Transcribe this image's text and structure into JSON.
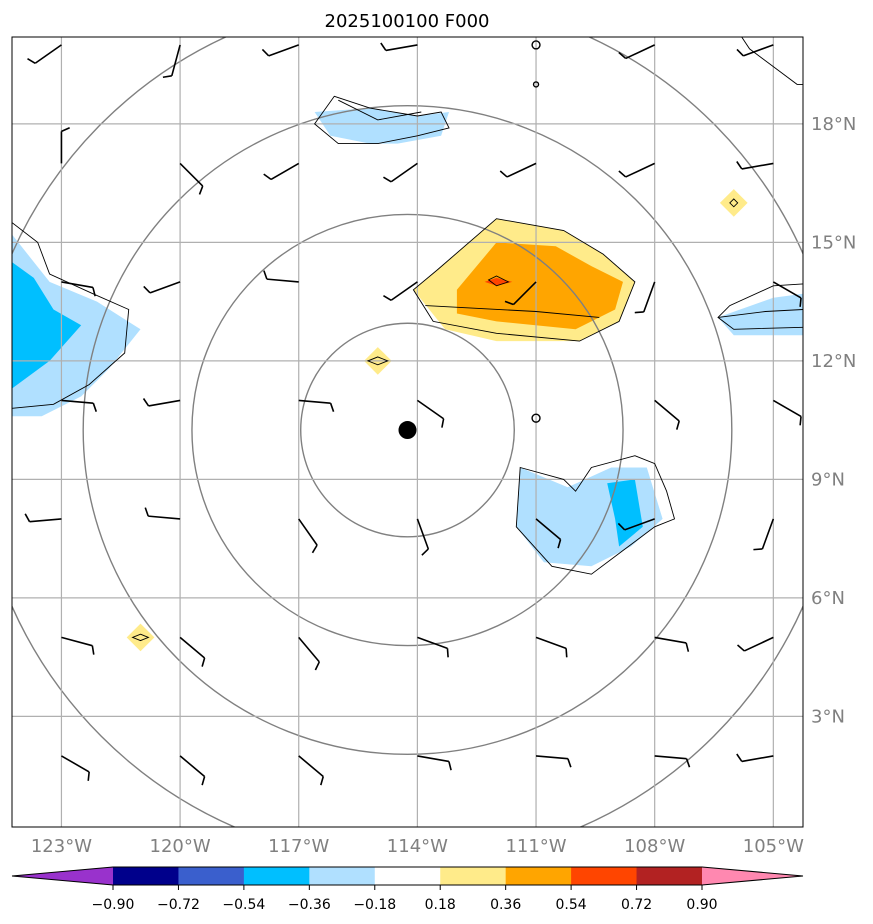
{
  "chart_data": {
    "type": "map",
    "title": "2025100100 F000",
    "projection": "lat-lon",
    "xlim": [
      -124.25,
      -104.25
    ],
    "ylim": [
      0.2,
      20.2
    ],
    "x_ticks": [
      {
        "value": -123,
        "label": "123°W"
      },
      {
        "value": -120,
        "label": "120°W"
      },
      {
        "value": -117,
        "label": "117°W"
      },
      {
        "value": -114,
        "label": "114°W"
      },
      {
        "value": -111,
        "label": "111°W"
      },
      {
        "value": -108,
        "label": "108°W"
      },
      {
        "value": -105,
        "label": "105°W"
      }
    ],
    "y_ticks": [
      {
        "value": 3,
        "label": "3°N"
      },
      {
        "value": 6,
        "label": "6°N"
      },
      {
        "value": 9,
        "label": "9°N"
      },
      {
        "value": 12,
        "label": "12°N"
      },
      {
        "value": 15,
        "label": "15°N"
      },
      {
        "value": 18,
        "label": "18°N"
      }
    ],
    "grid": true,
    "storm_center": {
      "lon": -114.25,
      "lat": 10.25
    },
    "range_rings_deg": [
      2.7,
      5.45,
      8.2,
      10.95
    ],
    "colorbar": {
      "orientation": "horizontal",
      "extend": "both",
      "boundaries": [
        -0.9,
        -0.72,
        -0.54,
        -0.36,
        -0.18,
        0.18,
        0.36,
        0.54,
        0.72,
        0.9
      ],
      "tick_labels": [
        "−0.90",
        "−0.72",
        "−0.54",
        "−0.36",
        "−0.18",
        "0.18",
        "0.36",
        "0.54",
        "0.72",
        "0.90"
      ],
      "colors": [
        "#9932cc",
        "#00008b",
        "#3a5fcd",
        "#00bfff",
        "#b0e0ff",
        "#ffffff",
        "#ffeb8a",
        "#ffa500",
        "#ff4500",
        "#b22222",
        "#ff88b0"
      ]
    },
    "filled_regions": [
      {
        "level": "0.18-0.36",
        "color": "#ffeb8a",
        "lonlat": [
          [
            -113.5,
            14.3
          ],
          [
            -112.0,
            15.6
          ],
          [
            -110.3,
            15.3
          ],
          [
            -109.3,
            14.7
          ],
          [
            -108.5,
            14.0
          ],
          [
            -108.9,
            13.0
          ],
          [
            -109.9,
            12.5
          ],
          [
            -112.0,
            12.5
          ],
          [
            -113.3,
            12.8
          ],
          [
            -114.1,
            13.8
          ]
        ]
      },
      {
        "level": "0.36-0.54",
        "color": "#ffa500",
        "lonlat": [
          [
            -113.0,
            13.8
          ],
          [
            -112.0,
            15.0
          ],
          [
            -110.5,
            14.9
          ],
          [
            -109.6,
            14.4
          ],
          [
            -108.8,
            14.0
          ],
          [
            -109.0,
            13.3
          ],
          [
            -110.0,
            12.8
          ],
          [
            -112.0,
            13.0
          ],
          [
            -113.0,
            13.2
          ]
        ]
      },
      {
        "level": "0.54-0.72",
        "color": "#ff4500",
        "lonlat": [
          [
            -112.3,
            14.0
          ],
          [
            -112.0,
            14.1
          ],
          [
            -111.6,
            14.0
          ],
          [
            -112.0,
            13.9
          ]
        ]
      },
      {
        "level": "0.18-0.36",
        "color": "#ffeb8a",
        "lonlat": [
          [
            -115.0,
            12.35
          ],
          [
            -114.65,
            12.0
          ],
          [
            -115.0,
            11.65
          ],
          [
            -115.35,
            12.0
          ]
        ]
      },
      {
        "level": "0.18-0.36",
        "color": "#ffeb8a",
        "lonlat": [
          [
            -121.0,
            5.35
          ],
          [
            -120.65,
            5.0
          ],
          [
            -121.0,
            4.65
          ],
          [
            -121.35,
            5.0
          ]
        ]
      },
      {
        "level": "0.18-0.36",
        "color": "#ffeb8a",
        "lonlat": [
          [
            -106.0,
            16.35
          ],
          [
            -105.65,
            16.0
          ],
          [
            -106.0,
            15.65
          ],
          [
            -106.35,
            16.0
          ]
        ]
      },
      {
        "level": "-0.36--0.18",
        "color": "#b0e0ff",
        "lonlat": [
          [
            -124.25,
            15.2
          ],
          [
            -123.3,
            14.0
          ],
          [
            -122.1,
            13.5
          ],
          [
            -121.0,
            12.8
          ],
          [
            -121.8,
            11.8
          ],
          [
            -122.5,
            11.1
          ],
          [
            -123.5,
            10.6
          ],
          [
            -124.25,
            10.6
          ]
        ]
      },
      {
        "level": "-0.54--0.36",
        "color": "#00bfff",
        "lonlat": [
          [
            -124.25,
            14.5
          ],
          [
            -123.7,
            14.1
          ],
          [
            -123.2,
            13.3
          ],
          [
            -122.5,
            12.9
          ],
          [
            -123.3,
            12.0
          ],
          [
            -124.25,
            11.3
          ]
        ]
      },
      {
        "level": "-0.36--0.18",
        "color": "#b0e0ff",
        "lonlat": [
          [
            -116.6,
            18.3
          ],
          [
            -115.2,
            18.4
          ],
          [
            -114.0,
            18.2
          ],
          [
            -113.2,
            18.3
          ],
          [
            -113.4,
            17.7
          ],
          [
            -114.5,
            17.5
          ],
          [
            -115.2,
            17.5
          ],
          [
            -116.2,
            17.7
          ]
        ]
      },
      {
        "level": "-0.36--0.18",
        "color": "#b0e0ff",
        "lonlat": [
          [
            -111.4,
            9.3
          ],
          [
            -110.2,
            8.8
          ],
          [
            -109.1,
            9.3
          ],
          [
            -108.2,
            9.3
          ],
          [
            -107.8,
            8.0
          ],
          [
            -108.6,
            7.3
          ],
          [
            -109.6,
            6.8
          ],
          [
            -110.8,
            6.9
          ],
          [
            -111.5,
            7.8
          ]
        ]
      },
      {
        "level": "-0.54--0.36",
        "color": "#00bfff",
        "lonlat": [
          [
            -108.5,
            9.0
          ],
          [
            -108.3,
            7.8
          ],
          [
            -108.9,
            7.3
          ],
          [
            -109.0,
            8.0
          ],
          [
            -109.2,
            8.9
          ]
        ]
      },
      {
        "level": "-0.36--0.18",
        "color": "#b0e0ff",
        "lonlat": [
          [
            -104.25,
            13.7
          ],
          [
            -105.0,
            13.6
          ],
          [
            -106.4,
            13.1
          ],
          [
            -106.0,
            12.65
          ],
          [
            -104.25,
            12.65
          ]
        ]
      }
    ],
    "contour_lines": [
      {
        "closed": true,
        "lonlat": [
          [
            -113.5,
            14.3
          ],
          [
            -112.0,
            15.6
          ],
          [
            -110.3,
            15.3
          ],
          [
            -109.3,
            14.7
          ],
          [
            -108.5,
            14.0
          ],
          [
            -108.9,
            13.0
          ],
          [
            -109.9,
            12.5
          ],
          [
            -112.0,
            12.7
          ],
          [
            -113.6,
            13.0
          ],
          [
            -114.1,
            13.8
          ]
        ]
      },
      {
        "closed": true,
        "lonlat": [
          [
            -112.2,
            14.05
          ],
          [
            -112.0,
            14.15
          ],
          [
            -111.7,
            14.0
          ],
          [
            -112.0,
            13.9
          ]
        ]
      },
      {
        "closed": true,
        "lonlat": [
          [
            -115.0,
            12.1
          ],
          [
            -114.75,
            12.0
          ],
          [
            -115.0,
            11.9
          ],
          [
            -115.25,
            12.0
          ]
        ]
      },
      {
        "closed": true,
        "lonlat": [
          [
            -121.0,
            5.08
          ],
          [
            -120.8,
            5.0
          ],
          [
            -121.0,
            4.92
          ],
          [
            -121.2,
            5.0
          ]
        ]
      },
      {
        "closed": true,
        "lonlat": [
          [
            -106.0,
            16.1
          ],
          [
            -105.9,
            16.0
          ],
          [
            -106.0,
            15.9
          ],
          [
            -106.1,
            16.0
          ]
        ]
      },
      {
        "closed": false,
        "lonlat": [
          [
            -124.25,
            15.5
          ],
          [
            -123.6,
            15.0
          ],
          [
            -123.3,
            14.2
          ],
          [
            -122.2,
            13.7
          ],
          [
            -121.3,
            13.3
          ],
          [
            -121.4,
            12.2
          ],
          [
            -122.3,
            11.4
          ],
          [
            -123.2,
            10.9
          ],
          [
            -124.25,
            10.8
          ]
        ]
      },
      {
        "closed": true,
        "lonlat": [
          [
            -116.6,
            18.0
          ],
          [
            -116.1,
            18.7
          ],
          [
            -115.2,
            18.4
          ],
          [
            -114.0,
            18.2
          ],
          [
            -113.4,
            18.3
          ],
          [
            -113.2,
            17.9
          ],
          [
            -114.0,
            17.7
          ],
          [
            -115.0,
            17.5
          ],
          [
            -116.0,
            17.5
          ]
        ]
      },
      {
        "closed": true,
        "lonlat": [
          [
            -111.4,
            9.3
          ],
          [
            -110.3,
            9.0
          ],
          [
            -110.0,
            8.7
          ],
          [
            -109.6,
            9.3
          ],
          [
            -108.5,
            9.6
          ],
          [
            -108.0,
            9.4
          ],
          [
            -107.7,
            8.7
          ],
          [
            -107.5,
            8.0
          ],
          [
            -108.0,
            7.8
          ],
          [
            -108.8,
            7.2
          ],
          [
            -109.6,
            6.6
          ],
          [
            -110.6,
            6.8
          ],
          [
            -111.5,
            7.8
          ]
        ]
      },
      {
        "closed": false,
        "lonlat": [
          [
            -104.25,
            13.95
          ],
          [
            -105.0,
            13.9
          ],
          [
            -106.1,
            13.4
          ],
          [
            -106.4,
            13.1
          ],
          [
            -106.0,
            12.8
          ],
          [
            -104.25,
            12.85
          ]
        ]
      },
      {
        "closed": false,
        "lonlat": [
          [
            -105.8,
            20.2
          ],
          [
            -105.6,
            19.9
          ],
          [
            -104.8,
            19.3
          ],
          [
            -104.4,
            19.0
          ],
          [
            -104.25,
            19.0
          ]
        ]
      },
      {
        "closed": false,
        "lonlat": [
          [
            -113.8,
            13.4
          ],
          [
            -111.0,
            13.25
          ],
          [
            -109.4,
            13.1
          ]
        ]
      },
      {
        "closed": false,
        "lonlat": [
          [
            -106.4,
            13.1
          ],
          [
            -105.2,
            13.25
          ],
          [
            -104.25,
            13.3
          ]
        ]
      },
      {
        "closed": false,
        "lonlat": [
          [
            -116.0,
            18.6
          ],
          [
            -115.0,
            18.1
          ],
          [
            -113.9,
            18.3
          ]
        ]
      }
    ],
    "small_circles": [
      {
        "lon": -111.0,
        "lat": 20.0,
        "r": 0.1
      },
      {
        "lon": -111.0,
        "lat": 19.0,
        "r": 0.06
      },
      {
        "lon": -111.0,
        "lat": 10.55,
        "r": 0.1
      }
    ],
    "wind_barbs": [
      {
        "lon": -123,
        "lat": 20,
        "angle": 235
      },
      {
        "lon": -120,
        "lat": 20,
        "angle": 195
      },
      {
        "lon": -117,
        "lat": 20,
        "angle": 250
      },
      {
        "lon": -114,
        "lat": 20,
        "angle": 260
      },
      {
        "lon": -108,
        "lat": 20,
        "angle": 245
      },
      {
        "lon": -105,
        "lat": 20,
        "angle": 250
      },
      {
        "lon": -123,
        "lat": 17,
        "angle": 0
      },
      {
        "lon": -120,
        "lat": 17,
        "angle": 135
      },
      {
        "lon": -117,
        "lat": 17,
        "angle": 240
      },
      {
        "lon": -114,
        "lat": 17,
        "angle": 235
      },
      {
        "lon": -111,
        "lat": 17,
        "angle": 245
      },
      {
        "lon": -108,
        "lat": 17,
        "angle": 245
      },
      {
        "lon": -105,
        "lat": 17,
        "angle": 260
      },
      {
        "lon": -123,
        "lat": 14,
        "angle": 100
      },
      {
        "lon": -120,
        "lat": 14,
        "angle": 250
      },
      {
        "lon": -117,
        "lat": 14,
        "angle": 275
      },
      {
        "lon": -114,
        "lat": 14,
        "angle": 235
      },
      {
        "lon": -111,
        "lat": 14,
        "angle": 225
      },
      {
        "lon": -108,
        "lat": 14,
        "angle": 200
      },
      {
        "lon": -105,
        "lat": 14,
        "angle": 120
      },
      {
        "lon": -123,
        "lat": 11,
        "angle": 95
      },
      {
        "lon": -120,
        "lat": 11,
        "angle": 260
      },
      {
        "lon": -117,
        "lat": 11,
        "angle": 95
      },
      {
        "lon": -114,
        "lat": 11,
        "angle": 125
      },
      {
        "lon": -108,
        "lat": 11,
        "angle": 130
      },
      {
        "lon": -105,
        "lat": 11,
        "angle": 120
      },
      {
        "lon": -123,
        "lat": 8,
        "angle": 265
      },
      {
        "lon": -120,
        "lat": 8,
        "angle": 275
      },
      {
        "lon": -117,
        "lat": 8,
        "angle": 145
      },
      {
        "lon": -114,
        "lat": 8,
        "angle": 160
      },
      {
        "lon": -111,
        "lat": 8,
        "angle": 130
      },
      {
        "lon": -108,
        "lat": 8,
        "angle": 250
      },
      {
        "lon": -105,
        "lat": 8,
        "angle": 200
      },
      {
        "lon": -123,
        "lat": 5,
        "angle": 105
      },
      {
        "lon": -120,
        "lat": 5,
        "angle": 130
      },
      {
        "lon": -117,
        "lat": 5,
        "angle": 140
      },
      {
        "lon": -114,
        "lat": 5,
        "angle": 110
      },
      {
        "lon": -111,
        "lat": 5,
        "angle": 110
      },
      {
        "lon": -108,
        "lat": 5,
        "angle": 100
      },
      {
        "lon": -105,
        "lat": 5,
        "angle": 245
      },
      {
        "lon": -123,
        "lat": 2,
        "angle": 120
      },
      {
        "lon": -120,
        "lat": 2,
        "angle": 130
      },
      {
        "lon": -117,
        "lat": 2,
        "angle": 130
      },
      {
        "lon": -114,
        "lat": 2,
        "angle": 100
      },
      {
        "lon": -111,
        "lat": 2,
        "angle": 95
      },
      {
        "lon": -108,
        "lat": 2,
        "angle": 95
      },
      {
        "lon": -105,
        "lat": 2,
        "angle": 260
      }
    ]
  }
}
